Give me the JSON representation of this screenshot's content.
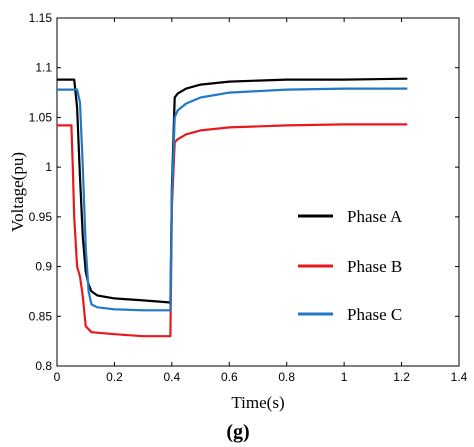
{
  "chart_data": {
    "type": "line",
    "caption": "(g)",
    "xlabel": "Time(s)",
    "ylabel": "Voltage(pu)",
    "xlim": [
      0,
      1.4
    ],
    "ylim": [
      0.8,
      1.15
    ],
    "xticks": [
      "0",
      "0.2",
      "0.4",
      "0.6",
      "0.8",
      "1",
      "1.2",
      "1.4"
    ],
    "yticks": [
      "0.8",
      "0.85",
      "0.9",
      "0.95",
      "1",
      "1.05",
      "1.1",
      "1.15"
    ],
    "grid": false,
    "legend_position": "right",
    "series": [
      {
        "name": "Phase A",
        "color": "#000000",
        "x": [
          0,
          0.06,
          0.07,
          0.08,
          0.09,
          0.1,
          0.11,
          0.12,
          0.14,
          0.2,
          0.3,
          0.39,
          0.395,
          0.4,
          0.41,
          0.42,
          0.45,
          0.5,
          0.6,
          0.8,
          1.0,
          1.22
        ],
        "y": [
          1.088,
          1.088,
          1.06,
          0.99,
          0.93,
          0.895,
          0.882,
          0.875,
          0.871,
          0.868,
          0.866,
          0.864,
          0.863,
          0.98,
          1.07,
          1.074,
          1.079,
          1.083,
          1.086,
          1.088,
          1.088,
          1.089
        ]
      },
      {
        "name": "Phase B",
        "color": "#e8191c",
        "x": [
          0,
          0.05,
          0.055,
          0.06,
          0.07,
          0.08,
          0.09,
          0.1,
          0.12,
          0.2,
          0.3,
          0.39,
          0.395,
          0.4,
          0.41,
          0.42,
          0.45,
          0.5,
          0.6,
          0.8,
          1.0,
          1.22
        ],
        "y": [
          1.042,
          1.042,
          1.0,
          0.95,
          0.9,
          0.89,
          0.87,
          0.84,
          0.834,
          0.832,
          0.83,
          0.83,
          0.83,
          0.96,
          1.025,
          1.028,
          1.033,
          1.037,
          1.04,
          1.042,
          1.043,
          1.043
        ]
      },
      {
        "name": "Phase C",
        "color": "#1f78c8",
        "x": [
          0,
          0.07,
          0.08,
          0.09,
          0.1,
          0.11,
          0.12,
          0.14,
          0.2,
          0.3,
          0.39,
          0.395,
          0.4,
          0.41,
          0.42,
          0.45,
          0.5,
          0.6,
          0.8,
          1.0,
          1.22
        ],
        "y": [
          1.078,
          1.078,
          1.065,
          1.0,
          0.92,
          0.875,
          0.862,
          0.859,
          0.857,
          0.856,
          0.856,
          0.856,
          0.97,
          1.05,
          1.057,
          1.064,
          1.07,
          1.075,
          1.078,
          1.079,
          1.079
        ]
      }
    ]
  }
}
